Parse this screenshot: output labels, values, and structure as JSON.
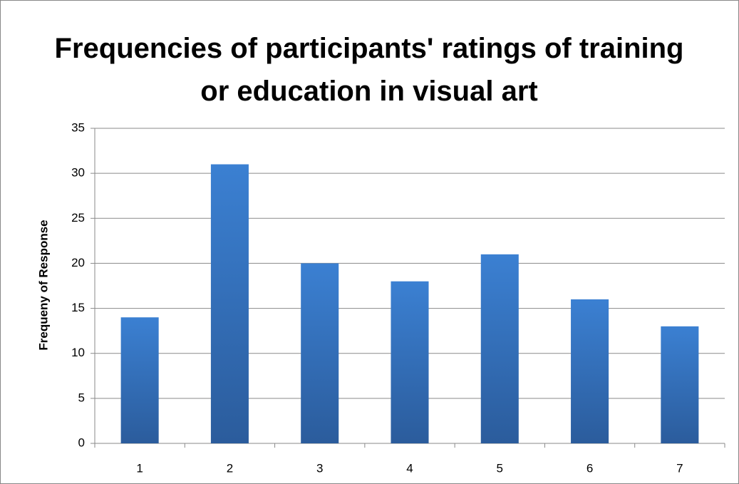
{
  "chart_data": {
    "type": "bar",
    "title": "Frequencies of participants' ratings of training or education in visual art",
    "ylabel": "Frequeny of Response",
    "categories": [
      "1",
      "2",
      "3",
      "4",
      "5",
      "6",
      "7"
    ],
    "values": [
      14,
      31,
      20,
      18,
      21,
      16,
      13
    ],
    "color": "#3a7dcc",
    "ylim": [
      0,
      35
    ],
    "yticks": [
      0,
      5,
      10,
      15,
      20,
      25,
      30,
      35
    ],
    "grid": true
  }
}
